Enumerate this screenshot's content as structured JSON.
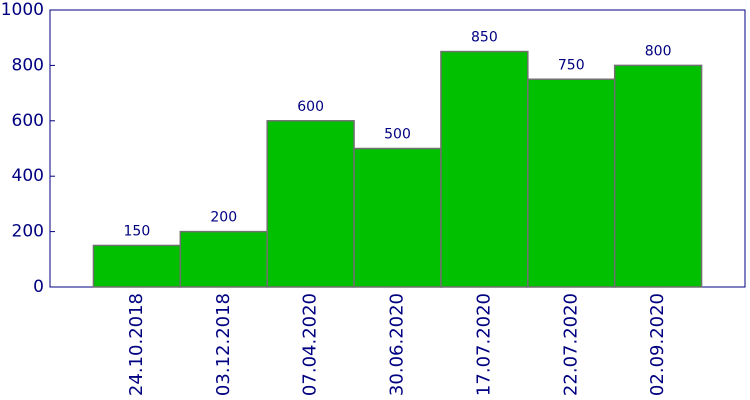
{
  "chart_data": {
    "type": "bar",
    "categories": [
      "24.10.2018",
      "03.12.2018",
      "07.04.2020",
      "30.06.2020",
      "17.07.2020",
      "22.07.2020",
      "02.09.2020"
    ],
    "values": [
      150,
      200,
      600,
      500,
      850,
      750,
      800
    ],
    "color": "#00c000",
    "ylim": [
      0,
      1000
    ],
    "yticks": [
      0,
      200,
      400,
      600,
      800,
      1000
    ]
  }
}
